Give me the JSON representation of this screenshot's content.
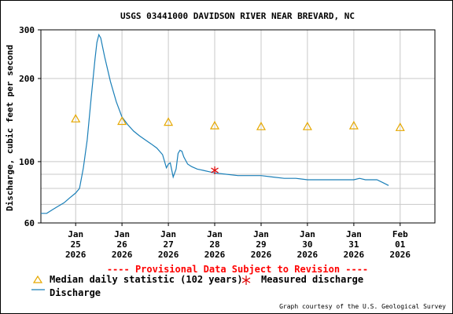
{
  "chart_data": {
    "type": "line",
    "title": "USGS 03441000 DAVIDSON RIVER NEAR BREVARD, NC",
    "ylabel": "Discharge, cubic feet per second",
    "xlabel": "",
    "y_scale": "log",
    "ylim": [
      60,
      300
    ],
    "y_ticks": [
      "300",
      "200",
      "100",
      "60"
    ],
    "y_tick_values": [
      300,
      200,
      100,
      60
    ],
    "y_grid_values": [
      60,
      70,
      80,
      90,
      100,
      200,
      300
    ],
    "xlim": [
      "2026-01-24T06:00",
      "2026-02-01T18:00"
    ],
    "x_ticks": [
      {
        "line1": "Jan",
        "line2": "25",
        "line3": "2026",
        "value": "2026-01-25T00:00"
      },
      {
        "line1": "Jan",
        "line2": "26",
        "line3": "2026",
        "value": "2026-01-26T00:00"
      },
      {
        "line1": "Jan",
        "line2": "27",
        "line3": "2026",
        "value": "2026-01-27T00:00"
      },
      {
        "line1": "Jan",
        "line2": "28",
        "line3": "2026",
        "value": "2026-01-28T00:00"
      },
      {
        "line1": "Jan",
        "line2": "29",
        "line3": "2026",
        "value": "2026-01-29T00:00"
      },
      {
        "line1": "Jan",
        "line2": "30",
        "line3": "2026",
        "value": "2026-01-30T00:00"
      },
      {
        "line1": "Jan",
        "line2": "31",
        "line3": "2026",
        "value": "2026-01-31T00:00"
      },
      {
        "line1": "Feb",
        "line2": "01",
        "line3": "2026",
        "value": "2026-02-01T00:00"
      }
    ],
    "grid": true,
    "colors": {
      "discharge": "#1a7fb8",
      "median": "#e6a800",
      "measured": "#dd0000",
      "grid": "#c8c8c8",
      "provisional": "#ff0000"
    },
    "series": [
      {
        "name": "Discharge",
        "style": "line",
        "points": [
          [
            "2026-01-24T06:00",
            65
          ],
          [
            "2026-01-24T09:00",
            65
          ],
          [
            "2026-01-24T12:00",
            67
          ],
          [
            "2026-01-24T15:00",
            69
          ],
          [
            "2026-01-24T18:00",
            71
          ],
          [
            "2026-01-24T21:00",
            74
          ],
          [
            "2026-01-25T00:00",
            77
          ],
          [
            "2026-01-25T02:00",
            80
          ],
          [
            "2026-01-25T04:00",
            95
          ],
          [
            "2026-01-25T06:00",
            120
          ],
          [
            "2026-01-25T08:00",
            170
          ],
          [
            "2026-01-25T10:00",
            235
          ],
          [
            "2026-01-25T11:00",
            270
          ],
          [
            "2026-01-25T12:00",
            288
          ],
          [
            "2026-01-25T13:00",
            280
          ],
          [
            "2026-01-25T15:00",
            240
          ],
          [
            "2026-01-25T18:00",
            195
          ],
          [
            "2026-01-25T21:00",
            165
          ],
          [
            "2026-01-26T00:00",
            145
          ],
          [
            "2026-01-26T03:00",
            136
          ],
          [
            "2026-01-26T06:00",
            129
          ],
          [
            "2026-01-26T09:00",
            124
          ],
          [
            "2026-01-26T12:00",
            120
          ],
          [
            "2026-01-26T15:00",
            116
          ],
          [
            "2026-01-26T18:00",
            112
          ],
          [
            "2026-01-26T21:00",
            106
          ],
          [
            "2026-01-26T23:00",
            95
          ],
          [
            "2026-01-27T00:00",
            98
          ],
          [
            "2026-01-27T01:00",
            99
          ],
          [
            "2026-01-27T02:30",
            88
          ],
          [
            "2026-01-27T04:00",
            94
          ],
          [
            "2026-01-27T05:00",
            107
          ],
          [
            "2026-01-27T06:00",
            110
          ],
          [
            "2026-01-27T07:00",
            109
          ],
          [
            "2026-01-27T08:00",
            104
          ],
          [
            "2026-01-27T10:00",
            98
          ],
          [
            "2026-01-27T12:00",
            96
          ],
          [
            "2026-01-27T15:00",
            94
          ],
          [
            "2026-01-27T18:00",
            93
          ],
          [
            "2026-01-27T21:00",
            92
          ],
          [
            "2026-01-28T00:00",
            91
          ],
          [
            "2026-01-28T06:00",
            90
          ],
          [
            "2026-01-28T12:00",
            89
          ],
          [
            "2026-01-28T18:00",
            89
          ],
          [
            "2026-01-29T00:00",
            89
          ],
          [
            "2026-01-29T06:00",
            88
          ],
          [
            "2026-01-29T12:00",
            87
          ],
          [
            "2026-01-29T18:00",
            87
          ],
          [
            "2026-01-30T00:00",
            86
          ],
          [
            "2026-01-30T12:00",
            86
          ],
          [
            "2026-01-31T00:00",
            86
          ],
          [
            "2026-01-31T03:00",
            87
          ],
          [
            "2026-01-31T06:00",
            86
          ],
          [
            "2026-01-31T09:00",
            86
          ],
          [
            "2026-01-31T12:00",
            86
          ],
          [
            "2026-01-31T15:00",
            84
          ],
          [
            "2026-01-31T18:00",
            82
          ]
        ]
      },
      {
        "name": "Median daily statistic (102 years)",
        "style": "triangle",
        "points": [
          [
            "2026-01-25T00:00",
            143
          ],
          [
            "2026-01-26T00:00",
            140
          ],
          [
            "2026-01-27T00:00",
            139
          ],
          [
            "2026-01-28T00:00",
            135
          ],
          [
            "2026-01-29T00:00",
            134
          ],
          [
            "2026-01-30T00:00",
            134
          ],
          [
            "2026-01-31T00:00",
            135
          ],
          [
            "2026-02-01T00:00",
            133
          ]
        ]
      },
      {
        "name": "Measured discharge",
        "style": "star",
        "points": [
          [
            "2026-01-28T00:00",
            93
          ]
        ]
      }
    ]
  },
  "provisional": "---- Provisional Data Subject to Revision ----",
  "legend": {
    "median": "Median daily statistic (102 years)",
    "measured": "Measured discharge",
    "discharge": "Discharge"
  },
  "credit": "Graph courtesy of the U.S. Geological Survey"
}
